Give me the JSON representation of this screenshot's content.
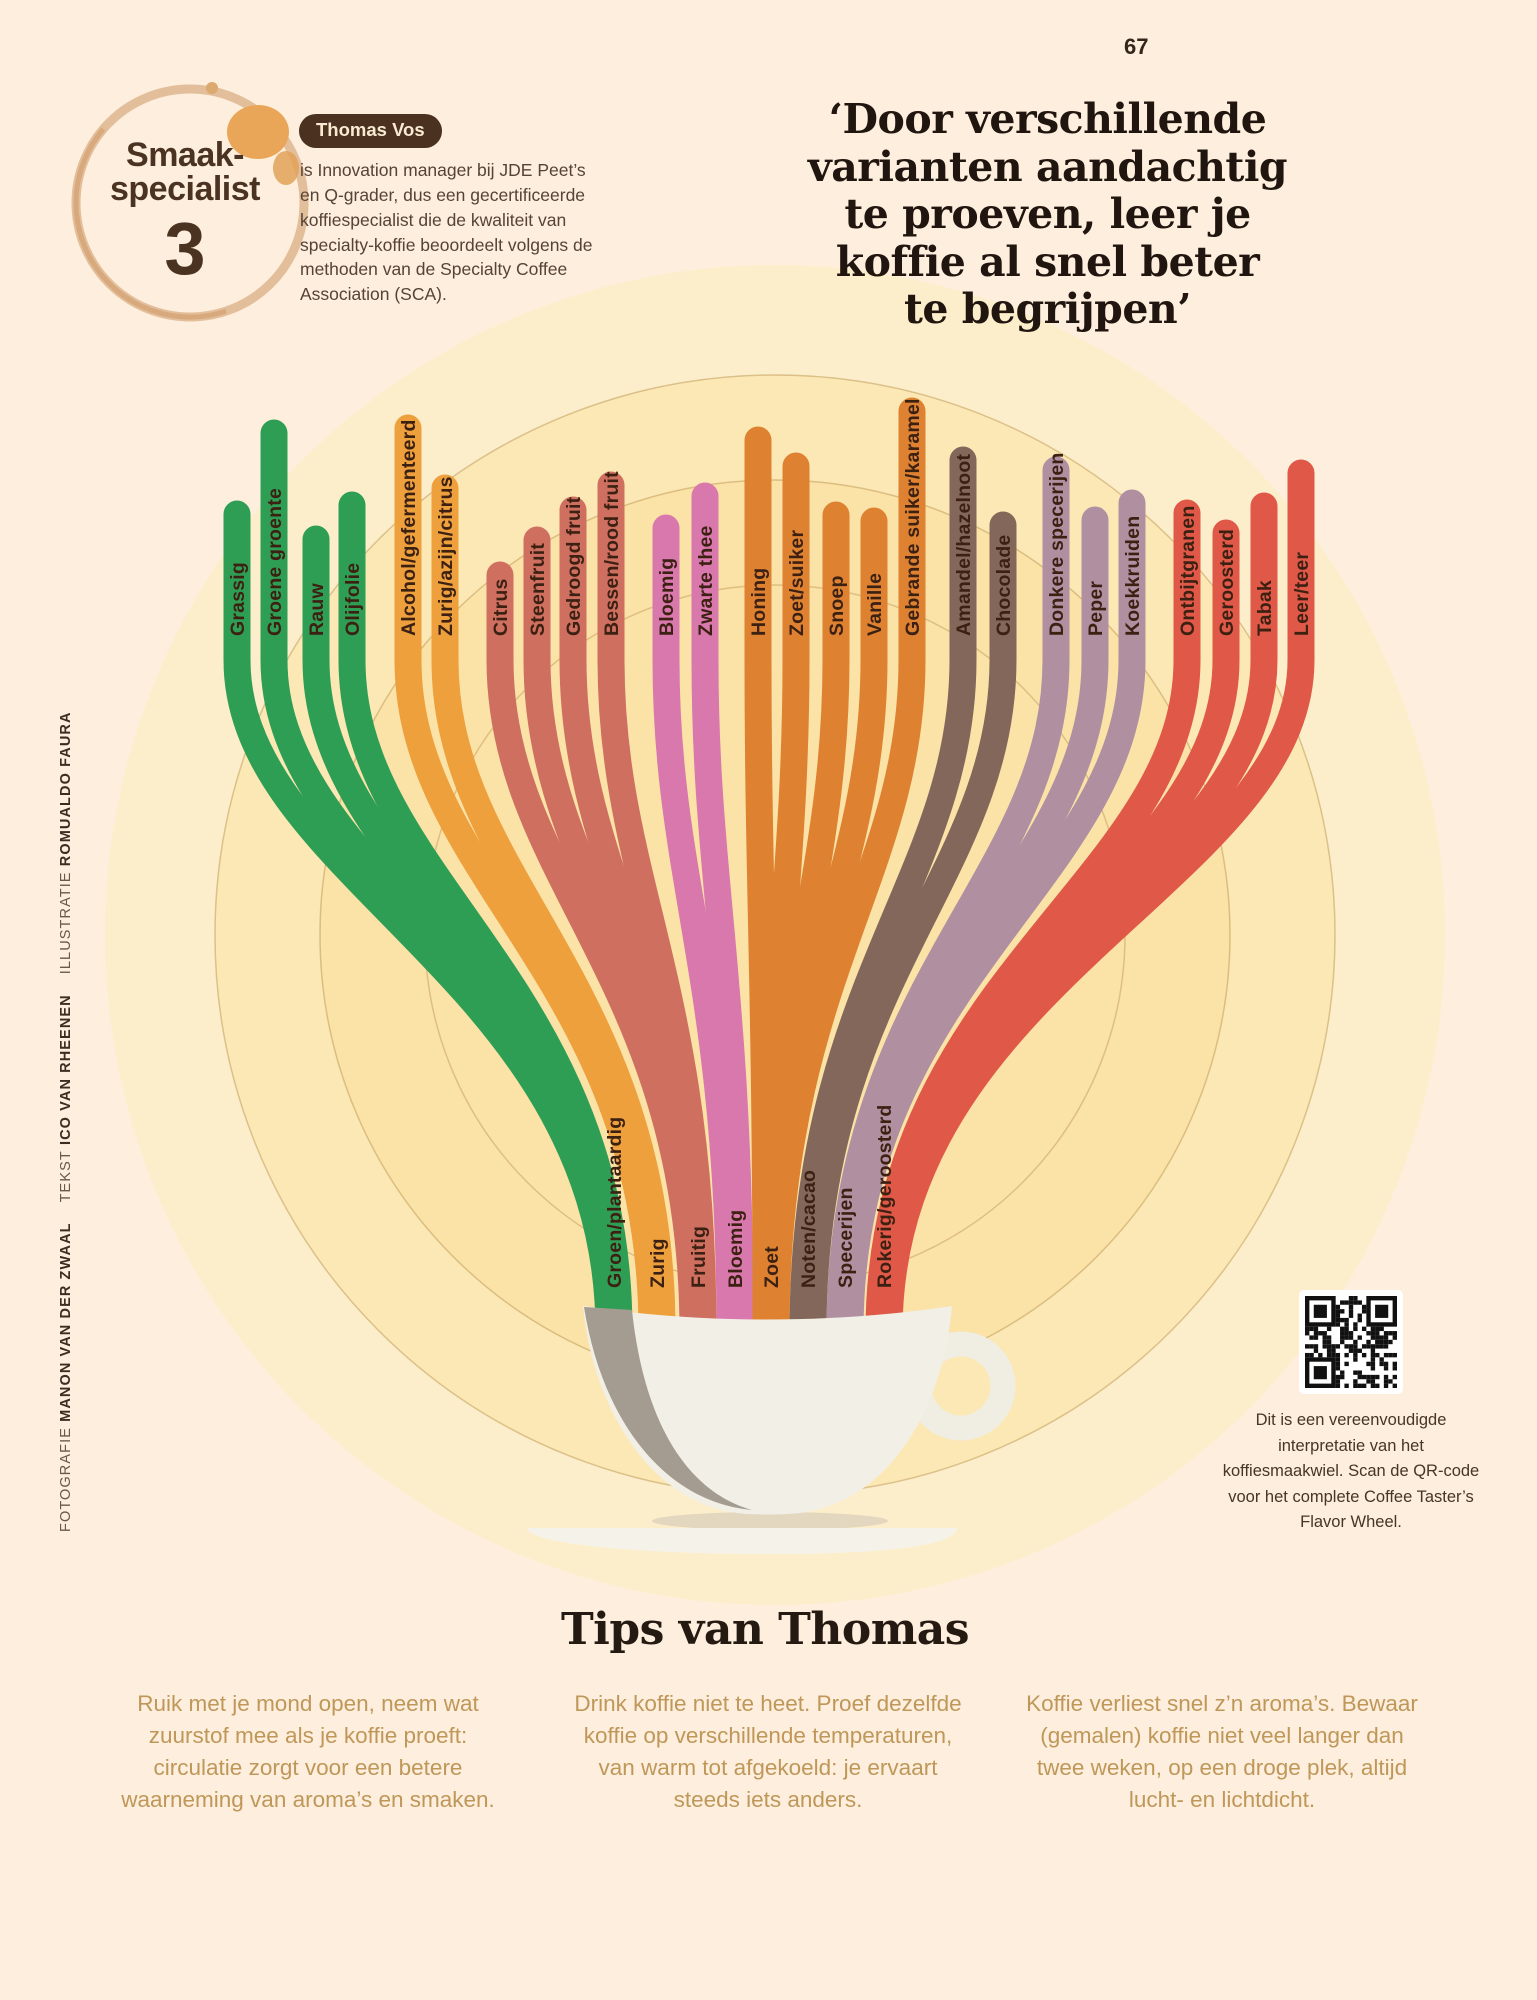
{
  "page": {
    "number": "67",
    "background_color": "#fdeedd"
  },
  "badge": {
    "line1": "Smaak-",
    "line2": "specialist",
    "number": "3"
  },
  "expert": {
    "name": "Thomas Vos",
    "bio": "is Innovation manager bij JDE Peet’s en Q-grader, dus een gecertificeerde koffiespecialist die de kwaliteit van specialty-koffie beoordeelt volgens de methoden van de Specialty Coffee Association (SCA)."
  },
  "quote": "‘Door verschillende\nvarianten aandachtig\nte proeven, leer je\nkoffie al snel beter\nte begrijpen’",
  "credits": [
    {
      "role": "FOTOGRAFIE",
      "name": "MANON VAN DER ZWAAL"
    },
    {
      "role": "TEKST",
      "name": "ICO VAN RHEENEN"
    },
    {
      "role": "ILLUSTRATIE",
      "name": "ROMUALDO FAURA"
    }
  ],
  "flavor_tree": {
    "label_color": "#3c2113",
    "groups": [
      {
        "name": "Groen/plantaardig",
        "color": "#2f9e55",
        "branches": [
          "Grassig",
          "Groene groente",
          "Rauw",
          "Olijfolie"
        ]
      },
      {
        "name": "Zurig",
        "color": "#eda03c",
        "branches": [
          "Alcohol/gefermenteerd",
          "Zurig/azijn/citrus"
        ]
      },
      {
        "name": "Fruitig",
        "color": "#cf6f60",
        "branches": [
          "Citrus",
          "Steenfruit",
          "Gedroogd fruit",
          "Bessen/rood fruit"
        ]
      },
      {
        "name": "Bloemig",
        "color": "#d978ac",
        "branches": [
          "Bloemig",
          "Zwarte thee"
        ]
      },
      {
        "name": "Zoet",
        "color": "#de8231",
        "branches": [
          "Honing",
          "Zoet/suiker",
          "Snoep",
          "Vanille",
          "Gebrande suiker/karamel"
        ]
      },
      {
        "name": "Noten/cacao",
        "color": "#84675b",
        "branches": [
          "Amandel/hazelnoot",
          "Chocolade"
        ]
      },
      {
        "name": "Specerijen",
        "color": "#b08fa1",
        "branches": [
          "Donkere specerijen",
          "Peper",
          "Koekkruiden"
        ]
      },
      {
        "name": "Rokerig/geroosterd",
        "color": "#e05847",
        "branches": [
          "Ontbijtgranen",
          "Geroosterd",
          "Tabak",
          "Leer/teer"
        ]
      }
    ]
  },
  "qr": {
    "caption": "Dit is een vereenvoudigde interpretatie van het koffiesmaakwiel. Scan de QR-code voor het complete Coffee Taster’s Flavor Wheel."
  },
  "tips": {
    "title": "Tips van Thomas",
    "items": [
      "Ruik met je mond open, neem wat zuurstof mee als je koffie proeft: circulatie zorgt voor een betere waarneming van aroma’s en smaken.",
      "Drink koffie niet te heet. Proef dezelfde koffie op verschillende temperaturen, van warm tot afgekoeld: je ervaart steeds iets anders.",
      "Koffie verliest snel z’n aroma’s. Bewaar (gemalen) koffie niet veel langer dan twee weken, op een droge plek, altijd lucht- en lichtdicht."
    ]
  }
}
